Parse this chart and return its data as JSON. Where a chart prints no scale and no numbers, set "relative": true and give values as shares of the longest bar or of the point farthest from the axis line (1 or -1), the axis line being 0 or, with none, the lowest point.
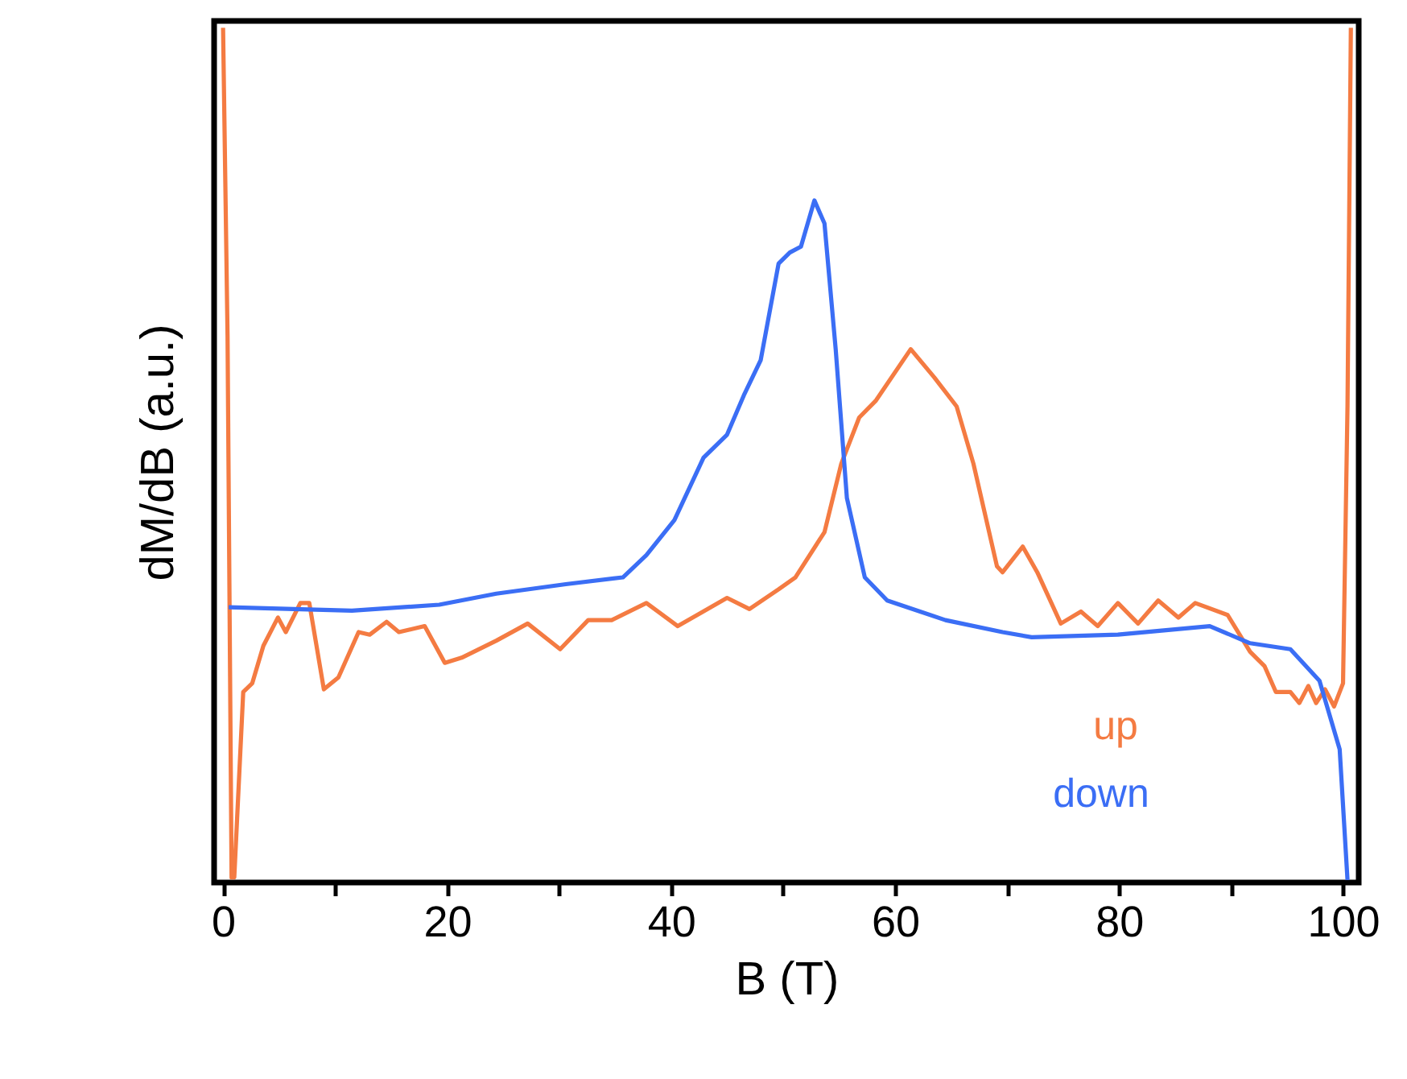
{
  "chart_data": {
    "type": "line",
    "relative": true,
    "xlabel": "B (T)",
    "ylabel": "dM/dB (a.u.)",
    "xlim": [
      -0.8,
      101.4
    ],
    "xticks": [
      0,
      {
        "value": 10,
        "label": null
      },
      20,
      {
        "value": 30,
        "label": null
      },
      40,
      {
        "value": 50,
        "label": null
      },
      60,
      {
        "value": 70,
        "label": null
      },
      80,
      {
        "value": 90,
        "label": null
      },
      100
    ],
    "grid": false,
    "legend": "bottom right",
    "series": [
      {
        "name": "up",
        "color": "#f47b42",
        "x": [
          0.0,
          0.4,
          0.76,
          1.0,
          1.8,
          2.6,
          3.6,
          4.9,
          5.6,
          6.9,
          7.7,
          9.0,
          10.3,
          12.1,
          13.1,
          14.6,
          15.7,
          18.0,
          19.8,
          21.3,
          24.4,
          27.2,
          30.1,
          32.6,
          34.7,
          37.8,
          40.6,
          45.0,
          47.0,
          49.6,
          51.1,
          53.7,
          55.2,
          56.8,
          58.3,
          61.4,
          63.5,
          65.5,
          67.0,
          69.1,
          69.6,
          71.4,
          72.7,
          74.8,
          76.6,
          78.1,
          79.9,
          81.7,
          83.5,
          85.3,
          86.8,
          89.7,
          91.7,
          93.0,
          94.0,
          95.3,
          96.1,
          96.9,
          97.6,
          98.4,
          99.2,
          100.0,
          100.4,
          100.7
        ],
        "values": [
          1.0,
          0.64,
          0.006,
          0.006,
          0.223,
          0.233,
          0.277,
          0.31,
          0.293,
          0.327,
          0.327,
          0.226,
          0.24,
          0.293,
          0.29,
          0.305,
          0.293,
          0.3,
          0.257,
          0.263,
          0.283,
          0.303,
          0.273,
          0.307,
          0.307,
          0.327,
          0.3,
          0.333,
          0.32,
          0.343,
          0.357,
          0.41,
          0.49,
          0.544,
          0.564,
          0.624,
          0.591,
          0.557,
          0.49,
          0.37,
          0.363,
          0.393,
          0.363,
          0.303,
          0.317,
          0.3,
          0.327,
          0.303,
          0.33,
          0.31,
          0.327,
          0.313,
          0.27,
          0.253,
          0.223,
          0.223,
          0.21,
          0.23,
          0.21,
          0.226,
          0.206,
          0.233,
          0.557,
          1.0
        ]
      },
      {
        "name": "down",
        "color": "#3b6ef5",
        "x": [
          0.5,
          11.5,
          19.3,
          24.4,
          30.6,
          35.7,
          37.8,
          40.3,
          42.9,
          45.0,
          46.5,
          48.0,
          49.6,
          50.6,
          51.6,
          52.8,
          53.7,
          54.7,
          55.7,
          57.3,
          59.3,
          64.5,
          69.6,
          72.2,
          79.9,
          88.1,
          91.7,
          95.3,
          97.9,
          99.7,
          100.4
        ],
        "values": [
          0.322,
          0.318,
          0.325,
          0.338,
          0.349,
          0.357,
          0.383,
          0.424,
          0.497,
          0.524,
          0.57,
          0.611,
          0.724,
          0.737,
          0.744,
          0.798,
          0.771,
          0.624,
          0.45,
          0.357,
          0.33,
          0.307,
          0.293,
          0.287,
          0.29,
          0.3,
          0.28,
          0.273,
          0.236,
          0.156,
          0.003
        ]
      }
    ]
  }
}
